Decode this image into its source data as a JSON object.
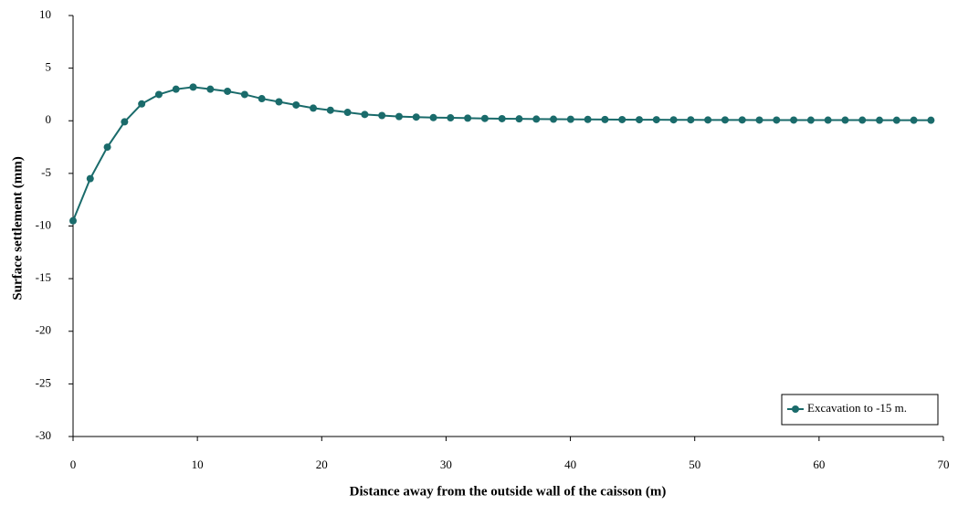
{
  "chart_data": {
    "type": "line",
    "xlabel": "Distance away from the outside wall of the caisson (m)",
    "ylabel": "Surface settlement (mm)",
    "x": [
      0,
      1.38,
      2.76,
      4.14,
      5.52,
      6.9,
      8.28,
      9.66,
      11.04,
      12.42,
      13.8,
      15.18,
      16.56,
      17.94,
      19.32,
      20.7,
      22.08,
      23.46,
      24.84,
      26.22,
      27.6,
      28.98,
      30.36,
      31.74,
      33.12,
      34.5,
      35.88,
      37.26,
      38.64,
      40.02,
      41.4,
      42.78,
      44.16,
      45.54,
      46.92,
      48.3,
      49.68,
      51.06,
      52.44,
      53.82,
      55.2,
      56.58,
      57.96,
      59.34,
      60.72,
      62.1,
      63.48,
      64.86,
      66.24,
      67.62,
      69
    ],
    "series": [
      {
        "name": "Excavation to -15 m.",
        "color": "#1a6b6b",
        "values": [
          -9.5,
          -5.5,
          -2.5,
          -0.1,
          1.6,
          2.5,
          3.0,
          3.2,
          3.0,
          2.8,
          2.5,
          2.1,
          1.8,
          1.5,
          1.2,
          1.0,
          0.8,
          0.6,
          0.5,
          0.4,
          0.35,
          0.3,
          0.28,
          0.25,
          0.22,
          0.2,
          0.18,
          0.16,
          0.15,
          0.14,
          0.13,
          0.12,
          0.11,
          0.1,
          0.1,
          0.09,
          0.09,
          0.08,
          0.08,
          0.08,
          0.07,
          0.07,
          0.07,
          0.06,
          0.06,
          0.06,
          0.06,
          0.05,
          0.05,
          0.05,
          0.05
        ]
      }
    ],
    "xlim": [
      0,
      70
    ],
    "xticks": [
      0,
      10,
      20,
      30,
      40,
      50,
      60,
      70
    ],
    "ylim": [
      -30,
      10
    ],
    "yticks": [
      -30,
      -25,
      -20,
      -15,
      -10,
      -5,
      0,
      5,
      10
    ],
    "legend": "lower right",
    "grid": false
  }
}
